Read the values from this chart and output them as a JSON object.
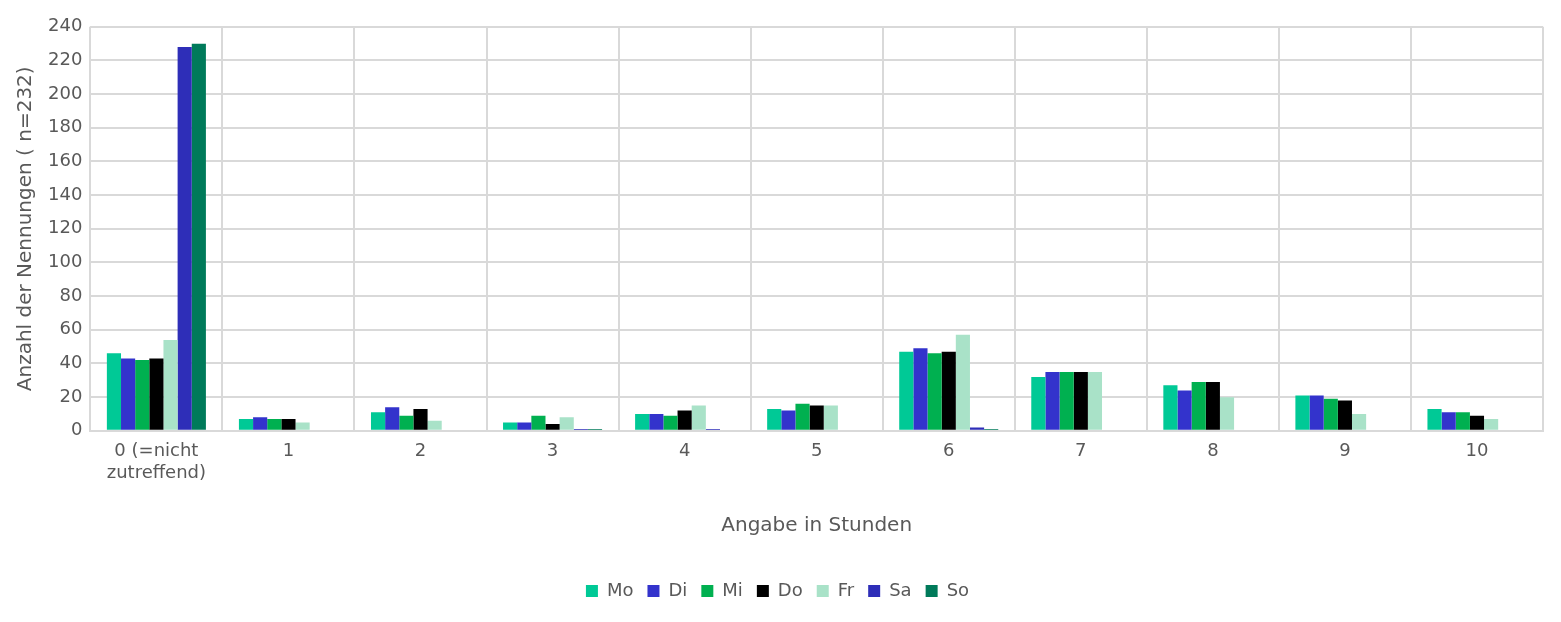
{
  "chart_data": {
    "type": "bar",
    "xlabel": "Angabe in Stunden",
    "ylabel": "Anzahl der Nennungen ( n=232)",
    "categories": [
      "0 (=nicht zutreffend)",
      "1",
      "2",
      "3",
      "4",
      "5",
      "6",
      "7",
      "8",
      "9",
      "10"
    ],
    "series": [
      {
        "name": "Mo",
        "color": "#00c996",
        "values": [
          46,
          7,
          11,
          5,
          10,
          13,
          47,
          32,
          27,
          21,
          13
        ]
      },
      {
        "name": "Di",
        "color": "#3333cc",
        "values": [
          43,
          8,
          14,
          5,
          10,
          12,
          49,
          35,
          24,
          21,
          11
        ]
      },
      {
        "name": "Mi",
        "color": "#00b050",
        "values": [
          42,
          7,
          9,
          9,
          9,
          16,
          46,
          35,
          29,
          19,
          11
        ]
      },
      {
        "name": "Do",
        "color": "#000000",
        "values": [
          43,
          7,
          13,
          4,
          12,
          15,
          47,
          35,
          29,
          18,
          9
        ]
      },
      {
        "name": "Fr",
        "color": "#a9e2c8",
        "values": [
          54,
          5,
          6,
          8,
          15,
          15,
          57,
          35,
          20,
          10,
          7
        ]
      },
      {
        "name": "Sa",
        "color": "#2e2eb8",
        "values": [
          228,
          0,
          0,
          1,
          1,
          0,
          2,
          0,
          0,
          0,
          0
        ]
      },
      {
        "name": "So",
        "color": "#007a5a",
        "values": [
          230,
          0,
          0,
          1,
          0,
          0,
          1,
          0,
          0,
          0,
          0
        ]
      }
    ],
    "ylim": [
      0,
      240
    ],
    "yticks": [
      0,
      20,
      40,
      60,
      80,
      100,
      120,
      140,
      160,
      180,
      200,
      220,
      240
    ],
    "grid": true,
    "legend": "bottom"
  }
}
